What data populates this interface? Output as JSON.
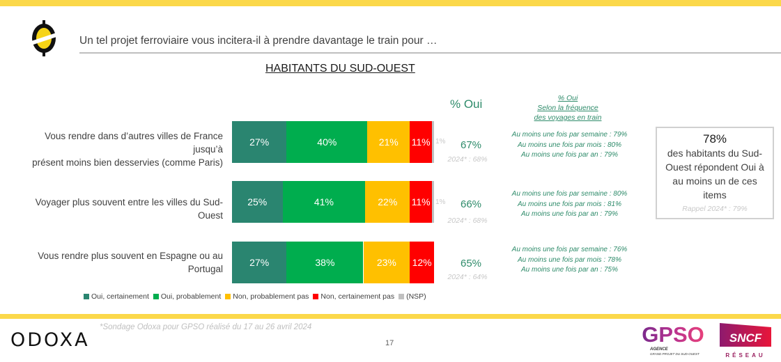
{
  "header": {
    "question": "Un tel projet ferroviaire vous incitera-il à prendre davantage le train pour …",
    "subtitle": "HABITANTS DU SUD-OUEST",
    "pct_oui_header": "% Oui",
    "freq_header": [
      "% Oui",
      "Selon la fréquence",
      "des voyages en train"
    ]
  },
  "colors": {
    "oui_certainement": "#2a8570",
    "oui_probablement": "#00ad4e",
    "non_probablement_pas": "#ffc000",
    "non_certainement_pas": "#ff0000",
    "nsp": "#c0c0c0",
    "accent_green": "#2e8b6a",
    "band_yellow": "#fbd84a"
  },
  "chart_data": {
    "type": "bar",
    "orientation": "horizontal-stacked-100",
    "title": "HABITANTS DU SUD-OUEST",
    "categories": [
      "Vous rendre dans d’autres villes de France jusqu’à présent moins bien desservies (comme Paris)",
      "Voyager plus souvent entre les villes du Sud-Ouest",
      "Vous rendre plus souvent en Espagne ou au Portugal"
    ],
    "series": [
      {
        "name": "Oui, certainement",
        "values": [
          27,
          25,
          27
        ]
      },
      {
        "name": "Oui, probablement",
        "values": [
          40,
          41,
          38
        ]
      },
      {
        "name": "Non, probablement pas",
        "values": [
          21,
          22,
          23
        ]
      },
      {
        "name": "Non, certainement pas",
        "values": [
          11,
          11,
          12
        ]
      },
      {
        "name": "(NSP)",
        "values": [
          1,
          1,
          0
        ]
      }
    ],
    "xlim": [
      0,
      100
    ],
    "legend": "bottom",
    "pct_oui": [
      "67%",
      "66%",
      "65%"
    ],
    "pct_oui_2024": [
      "2024* : 68%",
      "2024* : 68%",
      "2024* : 64%"
    ]
  },
  "rows": [
    {
      "label_lines": [
        "Vous rendre dans d’autres villes de France jusqu’à",
        "présent moins bien desservies (comme Paris)"
      ],
      "segments": [
        "27%",
        "40%",
        "21%",
        "11%"
      ],
      "nsp": "1%",
      "oui": "67%",
      "oui_2024": "2024* : 68%",
      "freq": [
        "Au moins une fois par semaine : 79%",
        "Au moins une fois par mois : 80%",
        "Au moins une fois par an : 79%"
      ]
    },
    {
      "label_lines": [
        "Voyager plus souvent entre les villes du Sud-Ouest"
      ],
      "segments": [
        "25%",
        "41%",
        "22%",
        "11%"
      ],
      "nsp": "1%",
      "oui": "66%",
      "oui_2024": "2024* : 68%",
      "freq": [
        "Au moins une fois par semaine : 80%",
        "Au moins une fois par mois : 81%",
        "Au moins une fois par an : 79%"
      ]
    },
    {
      "label_lines": [
        "Vous rendre plus souvent en Espagne ou au",
        "Portugal"
      ],
      "segments": [
        "27%",
        "38%",
        "23%",
        "12%"
      ],
      "nsp": "",
      "oui": "65%",
      "oui_2024": "2024* : 64%",
      "freq": [
        "Au moins une fois par semaine : 76%",
        "Au moins une fois par mois : 78%",
        "Au moins une fois par an : 75%"
      ]
    }
  ],
  "legend": [
    "Oui, certainement",
    "Oui, probablement",
    "Non, probablement pas",
    "Non, certainement pas",
    "(NSP)"
  ],
  "summary": {
    "pct": "78%",
    "text_lines": [
      "des habitants du Sud-",
      "Ouest répondent Oui à",
      "au moins un de ces",
      "items"
    ],
    "rappel": "Rappel 2024* : 79%"
  },
  "footer": {
    "footnote": "*Sondage Odoxa pour GPSO réalisé du 17 au 26 avril 2024",
    "page_number": "17",
    "odoxa_logo": "ODOXA",
    "gpso_logo": "GPSO",
    "gpso_sub1": "AGENCE",
    "gpso_sub2": "GRAND PROJET DU SUD-OUEST",
    "sncf_logo": "SNCF",
    "sncf_sub": "RÉSEAU"
  }
}
